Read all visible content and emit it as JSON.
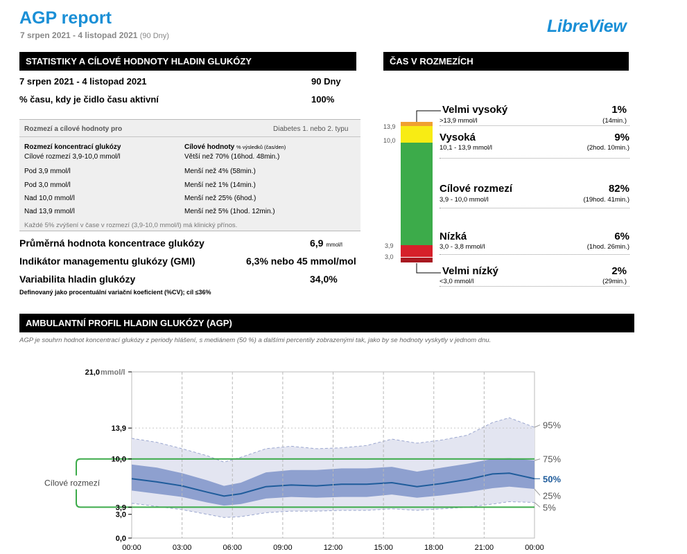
{
  "header": {
    "title": "AGP report",
    "date_range": "7 srpen 2021 - 4 listopad 2021",
    "days_label": "(90 Dny)",
    "brand": "LibreView"
  },
  "stats": {
    "section_title": "STATISTIKY A CÍLOVÉ HODNOTY HLADIN GLUKÓZY",
    "period_label": "7 srpen 2021 - 4 listopad 2021",
    "period_value": "90 Dny",
    "sensor_label": "% času, kdy je čidlo času aktivní",
    "sensor_value": "100%",
    "targets_box": {
      "header_left": "Rozmezí a cílové hodnoty pro",
      "header_right": "Diabetes 1. nebo 2. typu",
      "col1_title": "Rozmezí koncentrací glukózy",
      "col2_title": "Cílové hodnoty",
      "col2_title_small": "% výsledků (čas/den)",
      "rows": [
        {
          "range": "Cílové rozmezí 3,9-10,0 mmol/l",
          "target": "Větší než 70% (16hod. 48min.)"
        },
        {
          "range": "Pod 3,9 mmol/l",
          "target": "Menší než 4% (58min.)"
        },
        {
          "range": "Pod 3,0 mmol/l",
          "target": "Menší než 1% (14min.)"
        },
        {
          "range": "Nad 10,0 mmol/l",
          "target": "Menší než 25% (6hod.)"
        },
        {
          "range": "Nad 13,9 mmol/l",
          "target": "Menší než 5% (1hod. 12min.)"
        }
      ],
      "note": "Každé 5% zvýšení v čase v rozmezí (3,9-10,0 mmol/l) má klinický přínos."
    },
    "avg_label": "Průměrná hodnota koncentrace glukózy",
    "avg_value": "6,9",
    "avg_unit": "mmol/l",
    "gmi_label": "Indikátor managementu glukózy (GMI)",
    "gmi_value": "6,3% nebo 45 mmol/mol",
    "var_label": "Variabilita hladin glukózy",
    "var_value": "34,0%",
    "var_definition": "Definovaný jako procentuální variační koeficient (%CV); cíl ≤36%"
  },
  "tir": {
    "section_title": "ČAS V ROZMEZÍCH",
    "tick_labels": [
      "13,9",
      "10,0",
      "3,9",
      "3,0"
    ],
    "categories": [
      {
        "name": "Velmi vysoký",
        "range": ">13,9 mmol/l",
        "percent": "1%",
        "time": "(14min.)",
        "color": "#f0a030",
        "fraction": 0.01
      },
      {
        "name": "Vysoká",
        "range": "10,1 - 13,9 mmol/l",
        "percent": "9%",
        "time": "(2hod. 10min.)",
        "color": "#f8ec14",
        "fraction": 0.09
      },
      {
        "name": "Cílové rozmezí",
        "range": "3,9 - 10,0 mmol/l",
        "percent": "82%",
        "time": "(19hod. 41min.)",
        "color": "#3cab4a",
        "fraction": 0.82
      },
      {
        "name": "Nízká",
        "range": "3,0 - 3,8 mmol/l",
        "percent": "6%",
        "time": "(1hod. 26min.)",
        "color": "#d6202a",
        "fraction": 0.06
      },
      {
        "name": "Velmi nízký",
        "range": "<3,0 mmol/l",
        "percent": "2%",
        "time": "(29min.)",
        "color": "#a81820",
        "fraction": 0.02
      }
    ]
  },
  "agp": {
    "section_title": "AMBULANTNÍ PROFIL HLADIN GLUKÓZY (AGP)",
    "description": "AGP je souhrn hodnot koncentrací glukózy z periody hlášení, s mediánem (50 %) a dalšími percentily zobrazenými tak, jako by se hodnoty vyskytly v jednom dnu.",
    "target_label": "Cílové rozmezí"
  },
  "chart_data": {
    "type": "area",
    "ylabel": "mmol/l",
    "ylim": [
      0,
      21
    ],
    "xlim": [
      0,
      24
    ],
    "y_ticks": [
      {
        "value": 21,
        "label": "21,0"
      },
      {
        "value": 13.9,
        "label": "13,9"
      },
      {
        "value": 10,
        "label": "10,0"
      },
      {
        "value": 3.9,
        "label": "3,9"
      },
      {
        "value": 3,
        "label": "3,0"
      },
      {
        "value": 0,
        "label": "0,0"
      }
    ],
    "x_tick_labels": [
      "00:00",
      "03:00",
      "06:00",
      "09:00",
      "12:00",
      "15:00",
      "18:00",
      "21:00",
      "00:00"
    ],
    "target_range": [
      3.9,
      10.0
    ],
    "target_color": "#3cab4a",
    "x": [
      0,
      1.5,
      3,
      4.5,
      5.5,
      6.5,
      8,
      9.5,
      11,
      12.5,
      14,
      15.5,
      17,
      18.5,
      20,
      21.5,
      22.5,
      24
    ],
    "series": [
      {
        "name": "95%",
        "values": [
          12.6,
          12.1,
          11.3,
          10.4,
          9.6,
          10.2,
          11.3,
          11.6,
          11.3,
          11.4,
          11.7,
          12.5,
          12.0,
          12.4,
          13.0,
          14.6,
          15.2,
          14.0
        ]
      },
      {
        "name": "75%",
        "values": [
          9.3,
          8.9,
          8.2,
          7.3,
          6.6,
          7.0,
          8.3,
          8.6,
          8.6,
          8.8,
          8.8,
          9.0,
          8.4,
          8.9,
          9.4,
          10.0,
          10.1,
          9.8
        ]
      },
      {
        "name": "50%",
        "values": [
          7.5,
          7.1,
          6.6,
          5.8,
          5.3,
          5.6,
          6.5,
          6.7,
          6.6,
          6.8,
          6.8,
          7.0,
          6.5,
          6.9,
          7.4,
          8.1,
          8.2,
          7.5
        ]
      },
      {
        "name": "25%",
        "values": [
          6.0,
          5.6,
          5.2,
          4.5,
          4.1,
          4.3,
          5.0,
          5.2,
          5.1,
          5.2,
          5.2,
          5.5,
          5.1,
          5.4,
          5.8,
          6.3,
          6.5,
          6.2
        ]
      },
      {
        "name": "5%",
        "values": [
          4.4,
          4.0,
          3.6,
          3.0,
          2.6,
          2.7,
          3.2,
          3.4,
          3.4,
          3.5,
          3.5,
          3.7,
          3.5,
          3.7,
          3.9,
          4.3,
          4.6,
          4.5
        ]
      }
    ],
    "colors": {
      "outer_band": "#e3e5f1",
      "inner_band": "#8ea0cf",
      "median": "#1f5c9b",
      "outer_line": "#9aa6cf"
    }
  }
}
